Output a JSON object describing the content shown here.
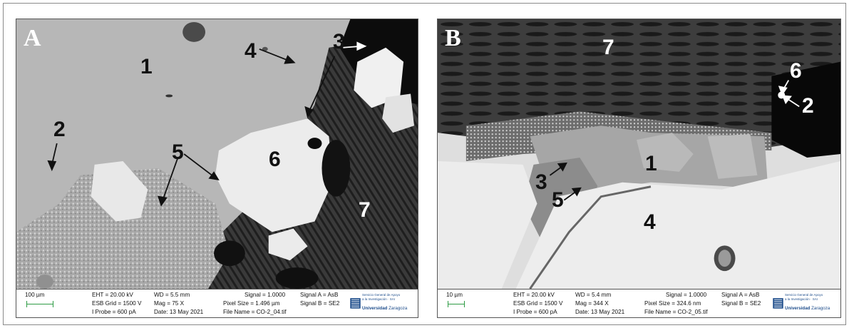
{
  "panels": {
    "a": {
      "letter": "A",
      "labels": {
        "l1": "1",
        "l2": "2",
        "l3": "3",
        "l4": "4",
        "l5": "5",
        "l6": "6",
        "l7": "7"
      },
      "databar": {
        "scale": "100 µm",
        "eht": "EHT = 20.00 kV",
        "esb": "ESB Grid = 1500 V",
        "probe": "I Probe =   600 pA",
        "wd": "WD = 5.5 mm",
        "mag": "Mag =   75 X",
        "date": "Date: 13 May 2021",
        "signal": "Signal = 1.0000",
        "pixel": "Pixel Size = 1.496 µm",
        "file": "File Name = CO-2_04.tif",
        "signal_a": "Signal A = AsB",
        "signal_b": "Signal B = SE2"
      }
    },
    "b": {
      "letter": "B",
      "labels": {
        "l1": "1",
        "l2": "2",
        "l3": "3",
        "l4": "4",
        "l5": "5",
        "l6": "6",
        "l7": "7"
      },
      "databar": {
        "scale": "10 µm",
        "eht": "EHT = 20.00 kV",
        "esb": "ESB Grid = 1500 V",
        "probe": "I Probe =   600 pA",
        "wd": "WD = 5.4 mm",
        "mag": "Mag =   344 X",
        "date": "Date: 13 May 2021",
        "signal": "Signal = 1.0000",
        "pixel": "Pixel Size = 324.6 nm",
        "file": "File Name = CO-2_05.tif",
        "signal_a": "Signal A = AsB",
        "signal_b": "Signal B = SE2"
      }
    }
  },
  "logo": {
    "line1": "Servicio General de Apoyo",
    "line2": "a la Investigación · SAI",
    "uni_bold": "Universidad",
    "uni_rest": " Zaragoza"
  },
  "colors": {
    "scale_bar": "#2e9b44",
    "logo": "#1f4e8c"
  }
}
